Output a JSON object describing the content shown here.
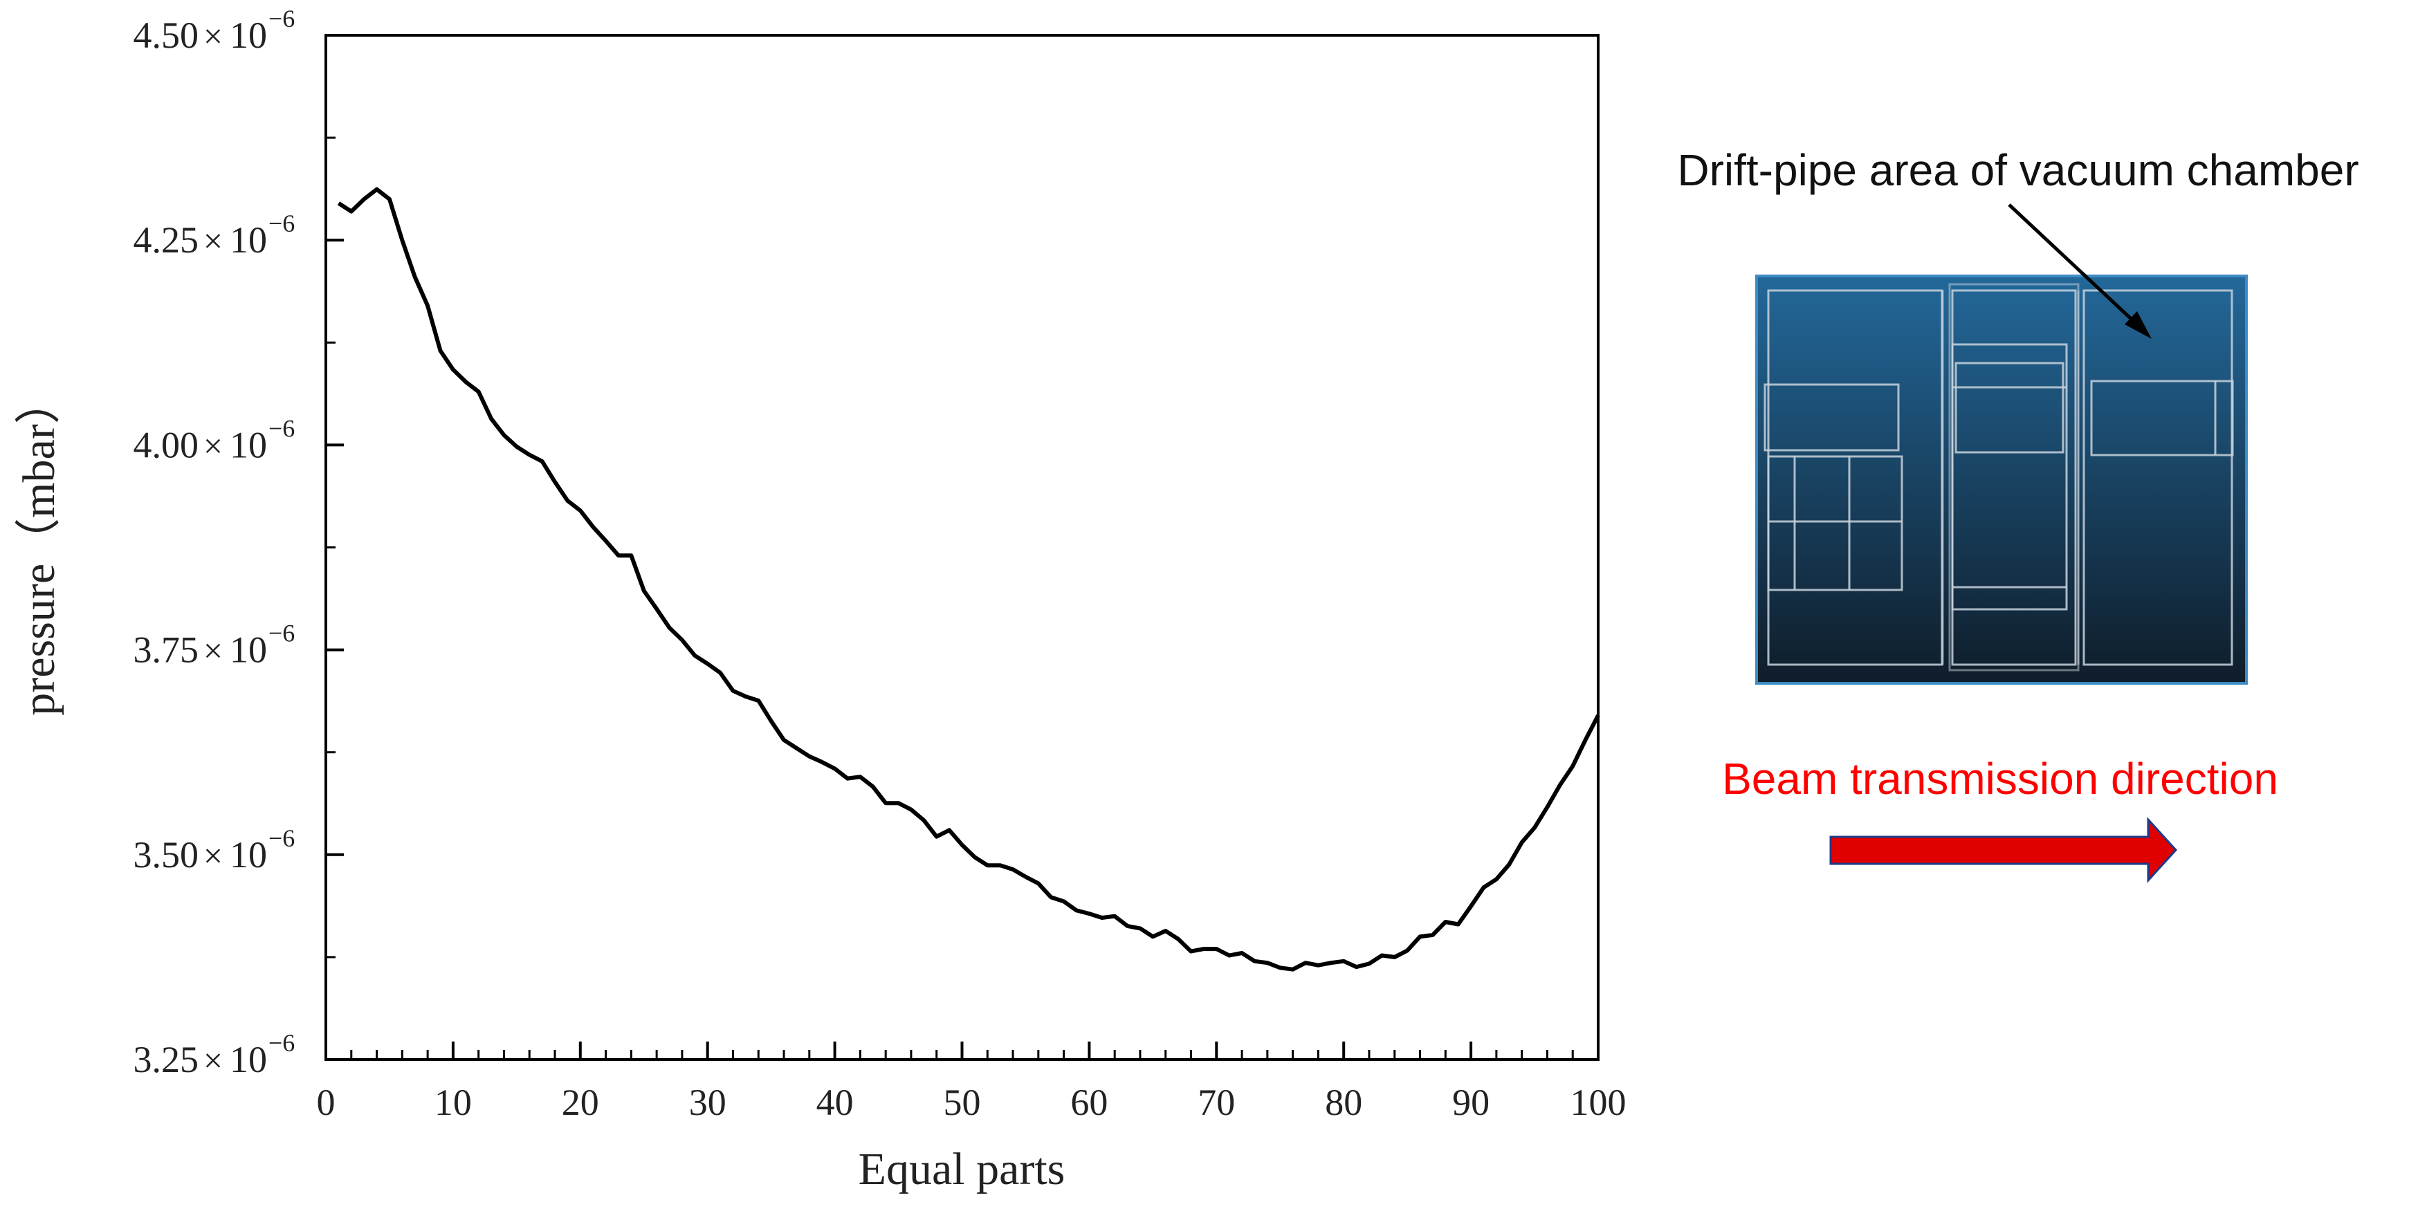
{
  "chart_data": {
    "type": "line",
    "xlabel": "Equal parts",
    "ylabel": "pressure（mbar）",
    "xlim": [
      0,
      100
    ],
    "ylim": [
      3.25e-06,
      4.5e-06
    ],
    "x_ticks": [
      0,
      10,
      20,
      30,
      40,
      50,
      60,
      70,
      80,
      90,
      100
    ],
    "x_tick_labels": [
      "0",
      "10",
      "20",
      "30",
      "40",
      "50",
      "60",
      "70",
      "80",
      "90",
      "100"
    ],
    "y_ticks": [
      3.25e-06,
      3.5e-06,
      3.75e-06,
      4e-06,
      4.25e-06,
      4.5e-06
    ],
    "y_tick_labels": [
      {
        "mantissa": "3.25",
        "times": "×",
        "base": "10",
        "exp": "−6"
      },
      {
        "mantissa": "3.50",
        "times": "×",
        "base": "10",
        "exp": "−6"
      },
      {
        "mantissa": "3.75",
        "times": "×",
        "base": "10",
        "exp": "−6"
      },
      {
        "mantissa": "4.00",
        "times": "×",
        "base": "10",
        "exp": "−6"
      },
      {
        "mantissa": "4.25",
        "times": "×",
        "base": "10",
        "exp": "−6"
      },
      {
        "mantissa": "4.50",
        "times": "×",
        "base": "10",
        "exp": "−6"
      }
    ],
    "grid": false,
    "series": [
      {
        "color": "#000000",
        "x": [
          1,
          2,
          3,
          4,
          5,
          6,
          7,
          8,
          9,
          10,
          11,
          12,
          13,
          14,
          15,
          16,
          17,
          18,
          19,
          20,
          21,
          22,
          23,
          24,
          25,
          26,
          27,
          28,
          29,
          30,
          31,
          32,
          33,
          34,
          35,
          36,
          37,
          38,
          39,
          40,
          41,
          42,
          43,
          44,
          45,
          46,
          47,
          48,
          49,
          50,
          51,
          52,
          53,
          54,
          55,
          56,
          57,
          58,
          59,
          60,
          61,
          62,
          63,
          64,
          65,
          66,
          67,
          68,
          69,
          70,
          71,
          72,
          73,
          74,
          75,
          76,
          77,
          78,
          79,
          80,
          81,
          82,
          83,
          84,
          85,
          86,
          87,
          88,
          89,
          90,
          91,
          92,
          93,
          94,
          95,
          96,
          97,
          98,
          99,
          100
        ],
        "y": [
          4.295e-06,
          4.285e-06,
          4.3e-06,
          4.312e-06,
          4.3e-06,
          4.25e-06,
          4.205e-06,
          4.17e-06,
          4.115e-06,
          4.092e-06,
          4.077e-06,
          4.065e-06,
          4.032e-06,
          4.012e-06,
          3.998e-06,
          3.988e-06,
          3.98e-06,
          3.955e-06,
          3.932e-06,
          3.92e-06,
          3.9e-06,
          3.883e-06,
          3.865e-06,
          3.865e-06,
          3.822e-06,
          3.8e-06,
          3.777e-06,
          3.762e-06,
          3.743e-06,
          3.733e-06,
          3.722e-06,
          3.7e-06,
          3.693e-06,
          3.688e-06,
          3.663e-06,
          3.64e-06,
          3.63e-06,
          3.62e-06,
          3.613e-06,
          3.605e-06,
          3.593e-06,
          3.595e-06,
          3.583e-06,
          3.563e-06,
          3.563e-06,
          3.555e-06,
          3.542e-06,
          3.522e-06,
          3.53e-06,
          3.512e-06,
          3.497e-06,
          3.487e-06,
          3.487e-06,
          3.482e-06,
          3.473e-06,
          3.465e-06,
          3.448e-06,
          3.443e-06,
          3.432e-06,
          3.428e-06,
          3.423e-06,
          3.425e-06,
          3.413e-06,
          3.41e-06,
          3.4e-06,
          3.407e-06,
          3.397e-06,
          3.382e-06,
          3.385e-06,
          3.385e-06,
          3.377e-06,
          3.38e-06,
          3.37e-06,
          3.368e-06,
          3.362e-06,
          3.36e-06,
          3.368e-06,
          3.365e-06,
          3.368e-06,
          3.37e-06,
          3.363e-06,
          3.367e-06,
          3.377e-06,
          3.375e-06,
          3.383e-06,
          3.4e-06,
          3.402e-06,
          3.418e-06,
          3.415e-06,
          3.437e-06,
          3.46e-06,
          3.47e-06,
          3.488e-06,
          3.515e-06,
          3.533e-06,
          3.558e-06,
          3.585e-06,
          3.608e-06,
          3.64e-06,
          3.67e-06
        ]
      }
    ]
  },
  "annotations": {
    "chamber_label": "Drift-pipe area of vacuum chamber",
    "beam_label": "Beam transmission direction",
    "beam_color": "#ff0000",
    "arrow_fill": "#e00000",
    "chamber_colors": {
      "top": "#23689a",
      "bottom": "#0f1d2a"
    }
  }
}
